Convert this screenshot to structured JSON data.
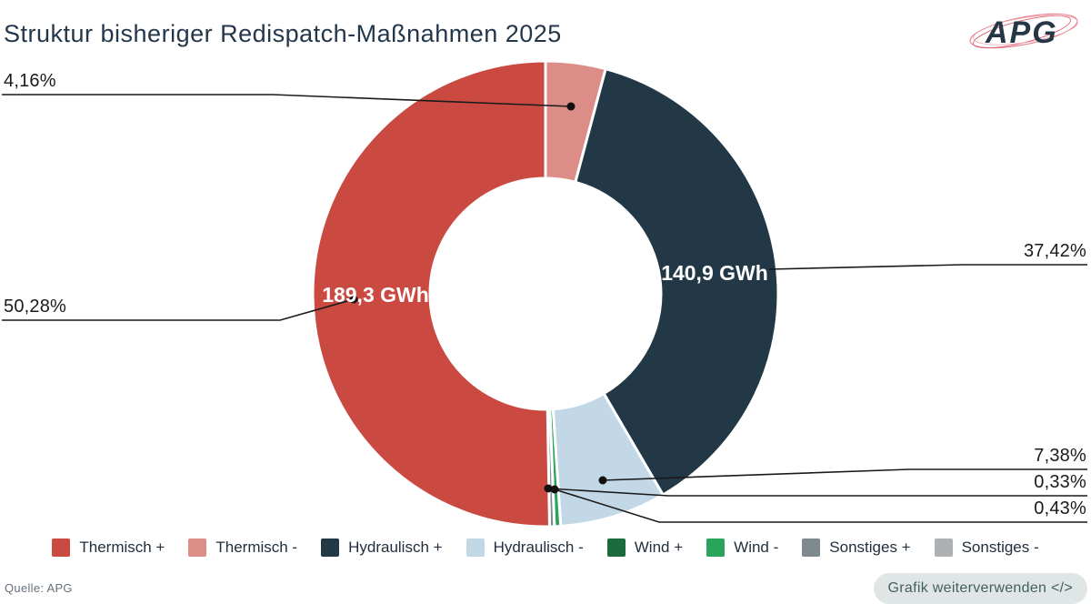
{
  "header": {
    "title": "Struktur bisheriger Redispatch-Maßnahmen 2025",
    "logo_text": "APG"
  },
  "chart_data": {
    "type": "pie",
    "subtype": "donut",
    "title": "Struktur bisheriger Redispatch-Maßnahmen 2025",
    "unit": "%",
    "direction": "clockwise",
    "start_angle": "12-oclock",
    "slices": [
      {
        "name": "Thermisch -",
        "pct": 4.16,
        "pct_label": "4,16%",
        "color": "#dc8d88"
      },
      {
        "name": "Hydraulisch +",
        "pct": 37.42,
        "pct_label": "37,42%",
        "gwh_label": "140,9 GWh",
        "color": "#233847"
      },
      {
        "name": "Hydraulisch -",
        "pct": 7.38,
        "pct_label": "7,38%",
        "color": "#c2d8e6"
      },
      {
        "name": "Wind -",
        "pct": 0.43,
        "pct_label": "0,43%",
        "color": "#2aa45a"
      },
      {
        "name": "Sonstiges +",
        "pct": 0.33,
        "pct_label": "0,33%",
        "color": "#7e8a90"
      },
      {
        "name": "Thermisch +",
        "pct": 50.28,
        "pct_label": "50,28%",
        "gwh_label": "189,3 GWh",
        "color": "#ca4a41"
      }
    ],
    "legend": [
      {
        "label": "Thermisch +",
        "color": "#ca4a41"
      },
      {
        "label": "Thermisch -",
        "color": "#dc8d88"
      },
      {
        "label": "Hydraulisch +",
        "color": "#233847"
      },
      {
        "label": "Hydraulisch -",
        "color": "#c2d8e6"
      },
      {
        "label": "Wind +",
        "color": "#1d6b3d"
      },
      {
        "label": "Wind -",
        "color": "#2aa45a"
      },
      {
        "label": "Sonstiges +",
        "color": "#7e8a90"
      },
      {
        "label": "Sonstiges -",
        "color": "#adb1b3"
      }
    ],
    "legend_position": "bottom"
  },
  "footer": {
    "source": "Quelle: APG",
    "button_label": "Grafik weiterverwenden </>"
  }
}
